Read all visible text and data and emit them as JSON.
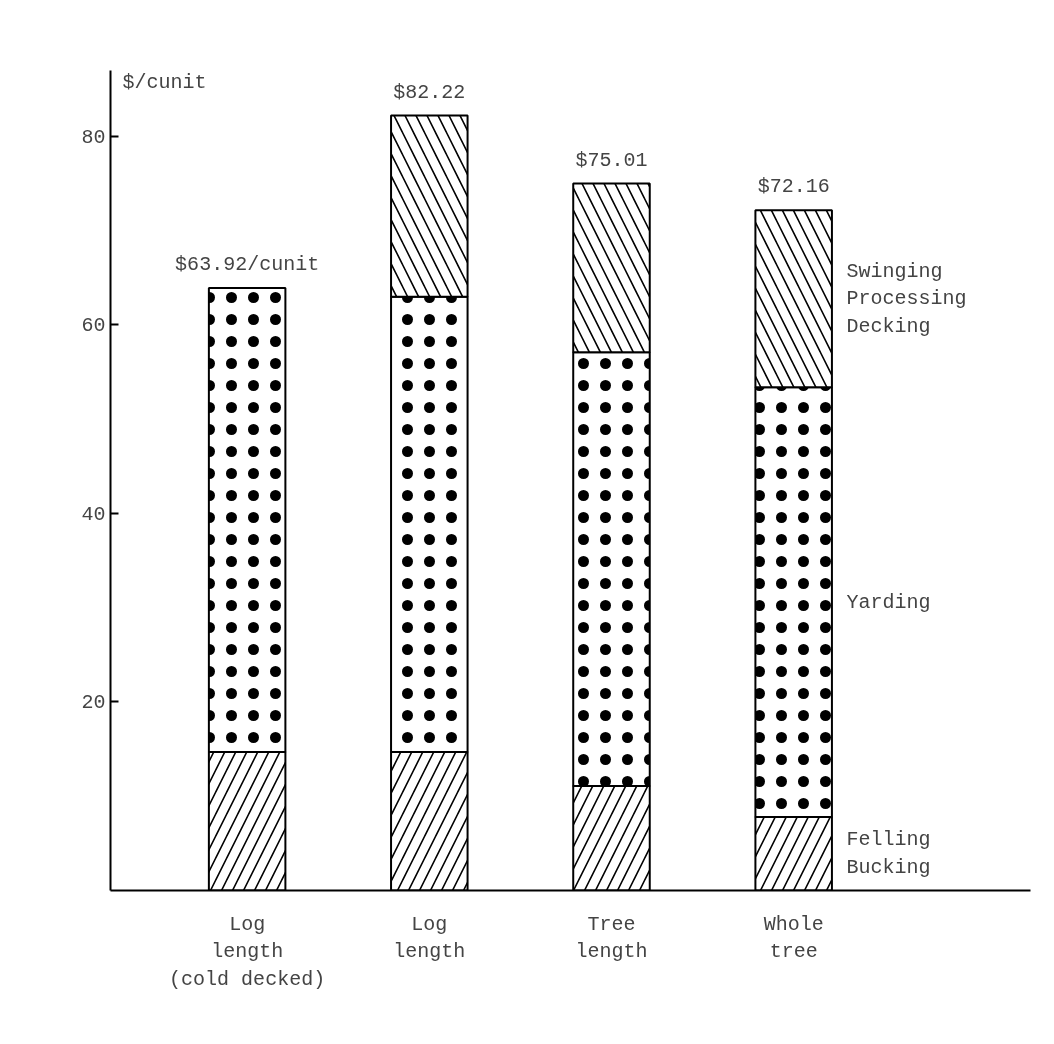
{
  "chart_data": {
    "type": "bar",
    "stacked": true,
    "ylabel": "$/cunit",
    "categories": [
      "Log\nlength\n(cold decked)",
      "Log\nlength",
      "Tree\nlength",
      "Whole\ntree"
    ],
    "series": [
      {
        "name": "Felling\nBucking",
        "color": "#ffffff",
        "values": [
          14.7,
          14.7,
          11.1,
          7.8
        ]
      },
      {
        "name": "Yarding",
        "color": "#ffffff",
        "values": [
          49.22,
          48.3,
          46.0,
          45.6
        ]
      },
      {
        "name": "Swinging\nProcessing\nDecking",
        "color": "#ffffff",
        "values": [
          null,
          19.22,
          17.91,
          18.76
        ]
      }
    ],
    "totals": [
      "$63.92/cunit",
      "$82.22",
      "$75.01",
      "$72.16"
    ],
    "ylim": [
      0,
      87
    ],
    "yticks": [
      20,
      40,
      60,
      80
    ],
    "grid": false,
    "legend": "right"
  }
}
